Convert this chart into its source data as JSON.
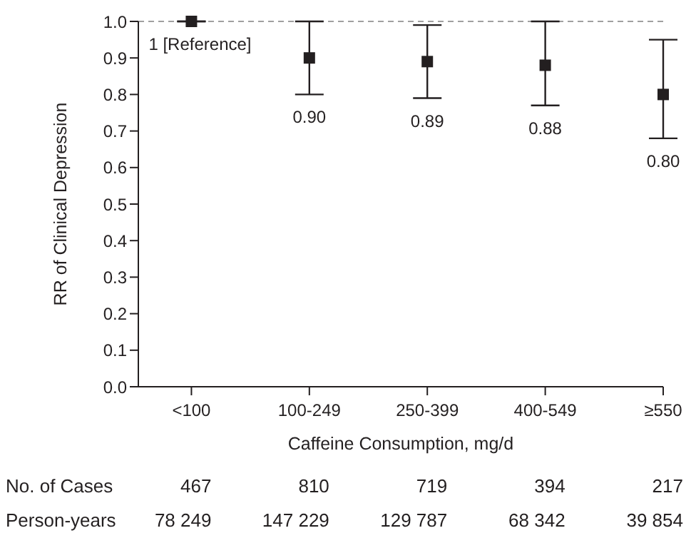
{
  "chart_data": {
    "type": "scatter",
    "xlabel": "Caffeine Consumption, mg/d",
    "ylabel": "RR of Clinical Depression",
    "categories": [
      "<100",
      "100-249",
      "250-399",
      "400-549",
      "≥550"
    ],
    "values": [
      1,
      0.9,
      0.89,
      0.88,
      0.8
    ],
    "errors": [
      null,
      [
        0.8,
        1.0
      ],
      [
        0.79,
        0.99
      ],
      [
        0.77,
        1.0
      ],
      [
        0.68,
        0.95
      ]
    ],
    "value_labels": [
      "1 [Reference]",
      "0.90",
      "0.89",
      "0.88",
      "0.80"
    ],
    "color": "#231f20",
    "marker": "square",
    "grid": false,
    "legend": false,
    "ylim": [
      0,
      1
    ],
    "yticks": [
      {
        "value": 0,
        "label": "0.0"
      },
      {
        "value": 0.1,
        "label": "0.1"
      },
      {
        "value": 0.2,
        "label": "0.2"
      },
      {
        "value": 0.3,
        "label": "0.3"
      },
      {
        "value": 0.4,
        "label": "0.4"
      },
      {
        "value": 0.5,
        "label": "0.5"
      },
      {
        "value": 0.6,
        "label": "0.6"
      },
      {
        "value": 0.7,
        "label": "0.7"
      },
      {
        "value": 0.8,
        "label": "0.8"
      },
      {
        "value": 0.9,
        "label": "0.9"
      },
      {
        "value": 1,
        "label": "1.0"
      }
    ],
    "ref_lines": [
      {
        "axis": "y",
        "value": 1,
        "color": "#a0a0a0",
        "line_style": "dashed"
      }
    ],
    "annotations": [
      "No. of Cases",
      "467",
      "810",
      "719",
      "394",
      "217",
      "Person-years",
      "78 249",
      "147 229",
      "129 787",
      "68 342",
      "39 854"
    ]
  }
}
